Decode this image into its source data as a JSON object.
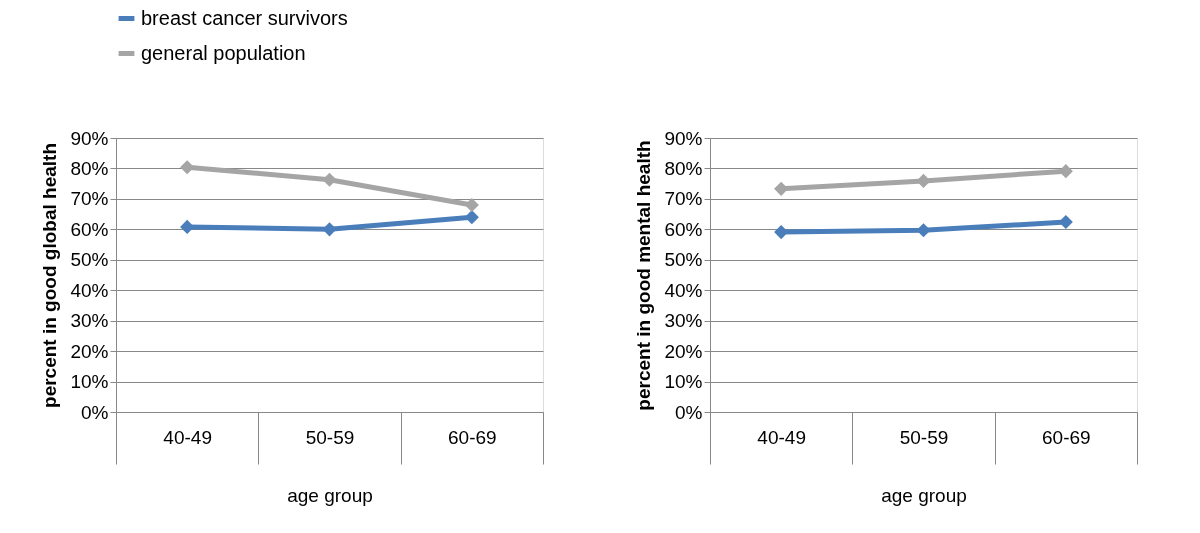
{
  "chart_data": [
    {
      "type": "line",
      "xlabel": "age group",
      "ylabel": "percent in good global health",
      "categories": [
        "40-49",
        "50-59",
        "60-69"
      ],
      "series": [
        {
          "name": "breast cancer survivors",
          "color": "#4a7ebb",
          "values": [
            60.8,
            60,
            64
          ]
        },
        {
          "name": "general population",
          "color": "#a5a5a5",
          "values": [
            80.4,
            76.3,
            68
          ]
        }
      ],
      "ylim": [
        0,
        90
      ],
      "yticks": [
        {
          "value": 0,
          "label": "0%"
        },
        {
          "value": 10,
          "label": "10%"
        },
        {
          "value": 20,
          "label": "20%"
        },
        {
          "value": 30,
          "label": "30%"
        },
        {
          "value": 40,
          "label": "40%"
        },
        {
          "value": 50,
          "label": "50%"
        },
        {
          "value": 60,
          "label": "60%"
        },
        {
          "value": 70,
          "label": "70%"
        },
        {
          "value": 80,
          "label": "80%"
        },
        {
          "value": 90,
          "label": "90%"
        }
      ],
      "grid": "y",
      "legend": "top",
      "marker": "diamond",
      "line_style": "solid"
    },
    {
      "type": "line",
      "xlabel": "age group",
      "ylabel": "percent in good mental health",
      "categories": [
        "40-49",
        "50-59",
        "60-69"
      ],
      "series": [
        {
          "name": "breast cancer survivors",
          "color": "#4a7ebb",
          "values": [
            59.1,
            59.7,
            62.4
          ]
        },
        {
          "name": "general population",
          "color": "#a5a5a5",
          "values": [
            73.3,
            75.9,
            79.1
          ]
        }
      ],
      "ylim": [
        0,
        90
      ],
      "yticks": [
        {
          "value": 0,
          "label": "0%"
        },
        {
          "value": 10,
          "label": "10%"
        },
        {
          "value": 20,
          "label": "20%"
        },
        {
          "value": 30,
          "label": "30%"
        },
        {
          "value": 40,
          "label": "40%"
        },
        {
          "value": 50,
          "label": "50%"
        },
        {
          "value": 60,
          "label": "60%"
        },
        {
          "value": 70,
          "label": "70%"
        },
        {
          "value": 80,
          "label": "80%"
        },
        {
          "value": 90,
          "label": "90%"
        }
      ],
      "grid": "y",
      "legend": "top",
      "marker": "diamond",
      "line_style": "solid"
    }
  ]
}
